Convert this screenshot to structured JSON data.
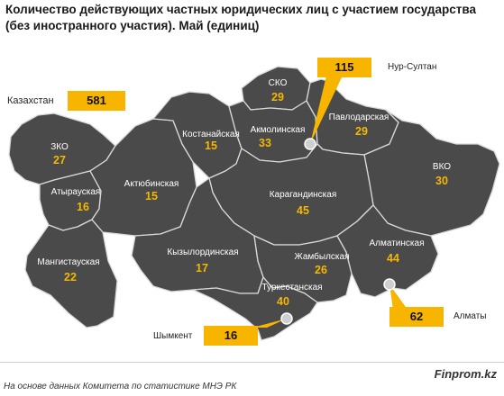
{
  "title": {
    "line1": "Количество действующих частных юридических лиц с участием государства",
    "line2": "(без иностранного участия). Май (единиц)"
  },
  "total": {
    "label": "Казахстан",
    "value": "581"
  },
  "regions": [
    {
      "id": "zko",
      "name": "ЗКО",
      "value": "27"
    },
    {
      "id": "atyrau",
      "name": "Атырауская",
      "value": "16"
    },
    {
      "id": "mangystau",
      "name": "Мангистауская",
      "value": "22"
    },
    {
      "id": "aktobe",
      "name": "Актюбинская",
      "value": "15"
    },
    {
      "id": "kostanay",
      "name": "Костанайская",
      "value": "15"
    },
    {
      "id": "sko",
      "name": "СКО",
      "value": "29"
    },
    {
      "id": "akmola",
      "name": "Акмолинская",
      "value": "33"
    },
    {
      "id": "pavlodar",
      "name": "Павлодарская",
      "value": "29"
    },
    {
      "id": "vko",
      "name": "ВКО",
      "value": "30"
    },
    {
      "id": "karaganda",
      "name": "Карагандинская",
      "value": "45"
    },
    {
      "id": "kyzylorda",
      "name": "Кызылординская",
      "value": "17"
    },
    {
      "id": "zhambyl",
      "name": "Жамбылская",
      "value": "26"
    },
    {
      "id": "turkestan",
      "name": "Туркестанская",
      "value": "40"
    },
    {
      "id": "almaty_reg",
      "name": "Алматинская",
      "value": "44"
    }
  ],
  "cities": {
    "nur_sultan": {
      "name": "Нур-Султан",
      "value": "115"
    },
    "almaty": {
      "name": "Алматы",
      "value": "62"
    },
    "shymkent": {
      "name": "Шымкент",
      "value": "16"
    }
  },
  "footer": {
    "source": "На основе данных Комитета по статистике МНЭ РК",
    "brand": "Finprom.kz"
  },
  "colors": {
    "region_fill": "#4a4a4a",
    "region_border": "#d9d9d9",
    "value_text": "#f5b800",
    "callout_fill": "#f7b500"
  }
}
